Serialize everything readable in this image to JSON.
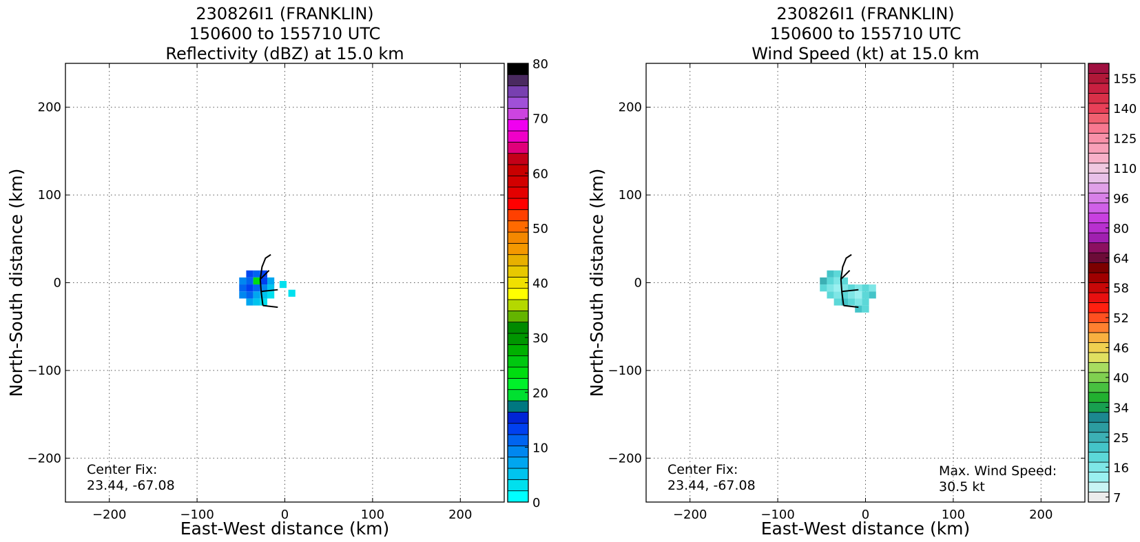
{
  "chart_data": [
    {
      "type": "heatmap",
      "title_lines": [
        "230826I1 (FRANKLIN)",
        "150600 to 155710 UTC",
        "Reflectivity (dBZ) at 15.0 km"
      ],
      "xlabel": "East-West distance (km)",
      "ylabel": "North-South distance (km)",
      "xlim": [
        -250,
        250
      ],
      "ylim": [
        -250,
        250
      ],
      "xticks": [
        -200,
        -100,
        0,
        100,
        200
      ],
      "yticks": [
        -200,
        -100,
        0,
        100,
        200
      ],
      "xtick_labels": [
        "−200",
        "−100",
        "0",
        "100",
        "200"
      ],
      "ytick_labels": [
        "200",
        "100",
        "0",
        "−100",
        "−200"
      ],
      "grid": true,
      "annotation_lines": [
        "Center Fix:",
        "23.44, -67.08"
      ],
      "colorbar": {
        "min": 0,
        "max": 80,
        "tick_values": [
          0,
          10,
          20,
          30,
          40,
          50,
          60,
          70,
          80
        ],
        "tick_labels": [
          "0",
          "10",
          "20",
          "30",
          "40",
          "50",
          "60",
          "70",
          "80"
        ],
        "colors": [
          "#00ffff",
          "#00e0ee",
          "#00c4ee",
          "#00a6f0",
          "#0087f0",
          "#0064f0",
          "#0040f0",
          "#0024d6",
          "#007780",
          "#00e030",
          "#00f02a",
          "#00dd10",
          "#00c810",
          "#00b000",
          "#009600",
          "#008a00",
          "#64b400",
          "#b4d800",
          "#ffff00",
          "#f0e000",
          "#e8c800",
          "#e8b000",
          "#f49800",
          "#f48800",
          "#ff6a00",
          "#ff4000",
          "#ff0000",
          "#e40000",
          "#d20000",
          "#c80000",
          "#c40018",
          "#e0007a",
          "#f000c8",
          "#f000f0",
          "#cc44e0",
          "#a050d8",
          "#7840b0",
          "#4a2a60",
          "#000000"
        ]
      },
      "data_region_cells": [
        [
          -40,
          10,
          "#0046f0"
        ],
        [
          -32,
          10,
          "#0064f0"
        ],
        [
          -24,
          10,
          "#0040f0"
        ],
        [
          -48,
          2,
          "#0087f0"
        ],
        [
          -40,
          2,
          "#0064f0"
        ],
        [
          -32,
          2,
          "#00dd10"
        ],
        [
          -24,
          2,
          "#0040f0"
        ],
        [
          -16,
          2,
          "#00a6f0"
        ],
        [
          -48,
          -6,
          "#0064f0"
        ],
        [
          -40,
          -6,
          "#0040f0"
        ],
        [
          -32,
          -6,
          "#0064f0"
        ],
        [
          -24,
          -6,
          "#0087f0"
        ],
        [
          -16,
          -6,
          "#00c4ee"
        ],
        [
          -48,
          -14,
          "#0087f0"
        ],
        [
          -40,
          -14,
          "#0064f0"
        ],
        [
          -32,
          -14,
          "#00a6f0"
        ],
        [
          -24,
          -14,
          "#00c4ee"
        ],
        [
          -16,
          -14,
          "#00e0ee"
        ],
        [
          -40,
          -22,
          "#00a6f0"
        ],
        [
          -32,
          -22,
          "#00c4ee"
        ],
        [
          -24,
          -22,
          "#00e0ee"
        ],
        [
          -2,
          -2,
          "#00e0ee"
        ],
        [
          8,
          -12,
          "#00e0ee"
        ]
      ]
    },
    {
      "type": "heatmap",
      "title_lines": [
        "230826I1 (FRANKLIN)",
        "150600 to 155710 UTC",
        "Wind Speed (kt) at 15.0 km"
      ],
      "xlabel": "East-West distance (km)",
      "ylabel": "North-South distance (km)",
      "xlim": [
        -250,
        250
      ],
      "ylim": [
        -250,
        250
      ],
      "xticks": [
        -200,
        -100,
        0,
        100,
        200
      ],
      "yticks": [
        -200,
        -100,
        0,
        100,
        200
      ],
      "xtick_labels": [
        "−200",
        "−100",
        "0",
        "100",
        "200"
      ],
      "ytick_labels": [
        "200",
        "100",
        "0",
        "−100",
        "−200"
      ],
      "grid": true,
      "annotation_lines": [
        "Center Fix:",
        "23.44, -67.08"
      ],
      "max_wind_lines": [
        "Max. Wind Speed:",
        "30.5 kt"
      ],
      "colorbar": {
        "min": 7,
        "max": 160,
        "tick_values": [
          7,
          16,
          25,
          34,
          40,
          46,
          52,
          58,
          64,
          80,
          96,
          110,
          125,
          140,
          155
        ],
        "tick_labels": [
          "7",
          "16",
          "25",
          "34",
          "40",
          "46",
          "52",
          "58",
          "64",
          "80",
          "96",
          "110",
          "125",
          "140",
          "155"
        ],
        "colors": [
          "#ececec",
          "#c8f4f4",
          "#9af0f0",
          "#7ee6e6",
          "#5cd8d8",
          "#44c4c8",
          "#3cb0b4",
          "#2c9ca0",
          "#1c8890",
          "#18a050",
          "#22b030",
          "#48c040",
          "#80d050",
          "#a8dc60",
          "#e0e060",
          "#f0d050",
          "#f8b040",
          "#ff8030",
          "#ff5020",
          "#ff2010",
          "#e81010",
          "#c80808",
          "#a00000",
          "#7c0000",
          "#6c0c38",
          "#8c1060",
          "#a020b0",
          "#b830d0",
          "#c840e0",
          "#d060e8",
          "#d880e8",
          "#e0a0e8",
          "#e8c0e8",
          "#f0c8e0",
          "#f8b0c8",
          "#f8a0b8",
          "#f890a8",
          "#f87890",
          "#f06070",
          "#e84058",
          "#d83048",
          "#c82040",
          "#b01838",
          "#a01040"
        ]
      },
      "data_region_cells": [
        [
          -40,
          10,
          "#44c4c8"
        ],
        [
          -32,
          10,
          "#5cd8d8"
        ],
        [
          -48,
          2,
          "#3cb0b4"
        ],
        [
          -40,
          2,
          "#5cd8d8"
        ],
        [
          -32,
          2,
          "#7ee6e6"
        ],
        [
          -24,
          2,
          "#5cd8d8"
        ],
        [
          -48,
          -6,
          "#5cd8d8"
        ],
        [
          -40,
          -6,
          "#7ee6e6"
        ],
        [
          -32,
          -6,
          "#9af0f0"
        ],
        [
          -24,
          -6,
          "#7ee6e6"
        ],
        [
          -16,
          -6,
          "#5cd8d8"
        ],
        [
          -8,
          -6,
          "#7ee6e6"
        ],
        [
          0,
          -6,
          "#5cd8d8"
        ],
        [
          8,
          -6,
          "#7ee6e6"
        ],
        [
          -40,
          -14,
          "#5cd8d8"
        ],
        [
          -32,
          -14,
          "#7ee6e6"
        ],
        [
          -24,
          -14,
          "#5cd8d8"
        ],
        [
          -16,
          -14,
          "#7ee6e6"
        ],
        [
          -8,
          -14,
          "#9af0f0"
        ],
        [
          0,
          -14,
          "#5cd8d8"
        ],
        [
          8,
          -14,
          "#44c4c8"
        ],
        [
          -32,
          -22,
          "#5cd8d8"
        ],
        [
          -24,
          -22,
          "#44c4c8"
        ],
        [
          -16,
          -22,
          "#5cd8d8"
        ],
        [
          -8,
          -22,
          "#7ee6e6"
        ],
        [
          0,
          -22,
          "#5cd8d8"
        ],
        [
          -8,
          -30,
          "#44c4c8"
        ],
        [
          0,
          -30,
          "#5cd8d8"
        ]
      ]
    }
  ]
}
